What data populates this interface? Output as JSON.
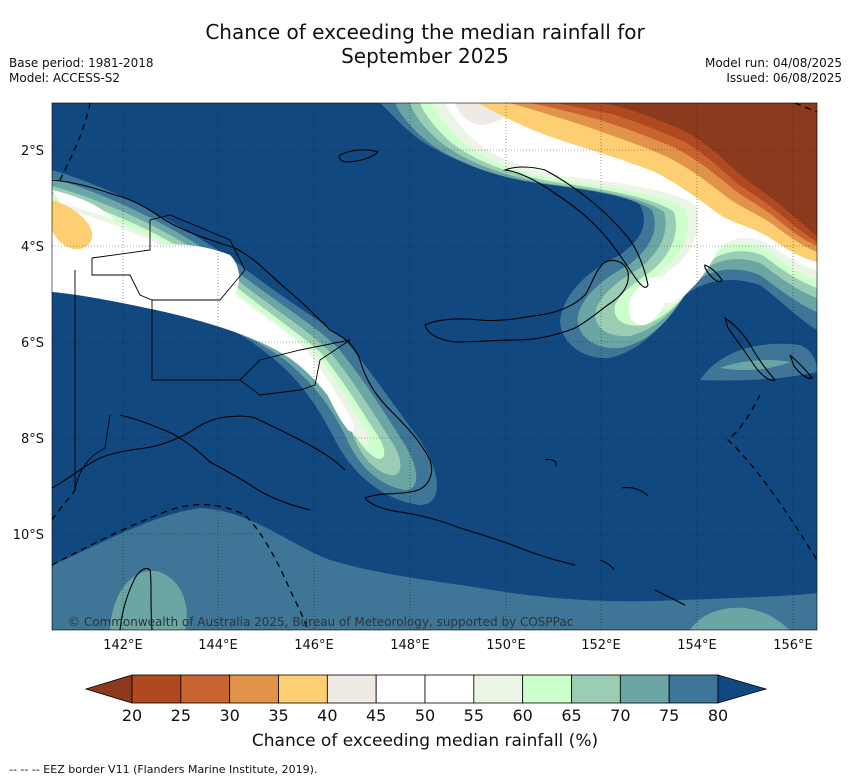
{
  "title_line1": "Chance of exceeding the median rainfall for",
  "title_line2": "September 2025",
  "meta_left": [
    "Base period: 1981-2018",
    "Model: ACCESS-S2"
  ],
  "meta_right": [
    "Model run: 04/08/2025",
    "Issued: 06/08/2025"
  ],
  "copyright": "© Commonwealth of Australia 2025, Bureau of Meteorology, supported by COSPPac",
  "lat_ticks": [
    "2°S",
    "4°S",
    "6°S",
    "8°S",
    "10°S"
  ],
  "lon_ticks": [
    "142°E",
    "144°E",
    "146°E",
    "148°E",
    "150°E",
    "152°E",
    "154°E",
    "156°E"
  ],
  "colorbar": {
    "ticks": [
      "20",
      "25",
      "30",
      "35",
      "40",
      "45",
      "50",
      "55",
      "60",
      "65",
      "70",
      "75",
      "80"
    ],
    "colors": [
      "#8b3a1e",
      "#b0491f",
      "#c96431",
      "#e2934a",
      "#fdcf72",
      "#efebe4",
      "#ffffff",
      "#ffffff",
      "#ebf5e6",
      "#ccffcc",
      "#9bcdb4",
      "#6ba6a4",
      "#3f7596",
      "#11487f"
    ],
    "label": "Chance of exceeding median rainfall (%)"
  },
  "footnote": "-- -- -- EEZ border V11 (Flanders Marine Institute, 2019).",
  "colors": {
    "ocean_high": "#11487f",
    "band_75": "#3f7596",
    "band_70": "#6ba6a4",
    "band_65": "#9bcdb4",
    "band_60": "#ccffcc",
    "band_white": "#ffffff",
    "band_neutral": "#efebe4",
    "band_35": "#fdcf72",
    "band_30": "#e2934a",
    "band_25": "#c96431",
    "band_20": "#b0491f",
    "band_low": "#8b3a1e"
  }
}
